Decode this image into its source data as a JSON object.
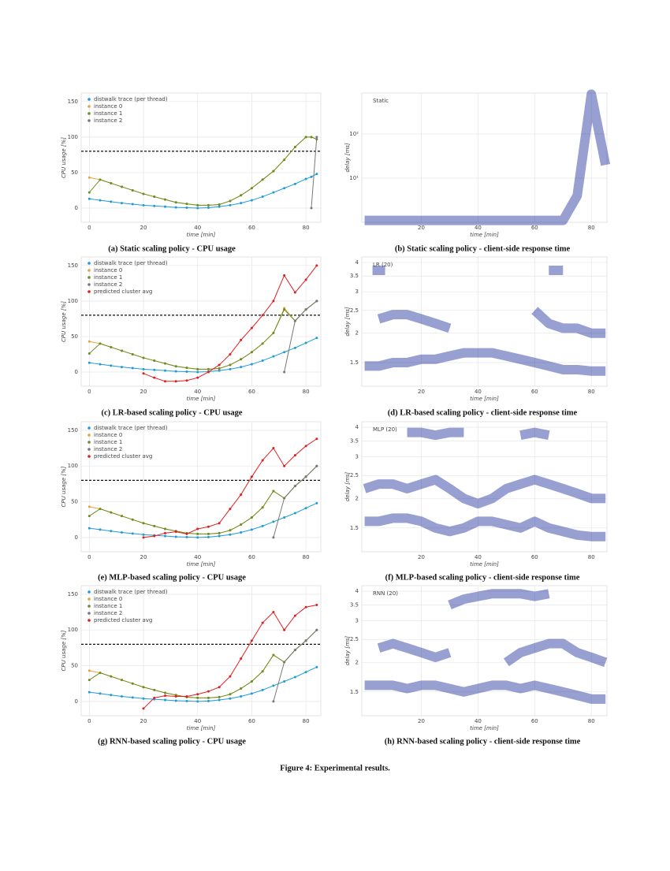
{
  "chart_data": [
    {
      "type": "line",
      "caption": "(a) Static scaling policy - CPU usage",
      "xlabel": "time [min]",
      "ylabel": "CPU usage [%]",
      "x": [
        0,
        4,
        8,
        12,
        16,
        20,
        24,
        28,
        32,
        36,
        40,
        44,
        48,
        52,
        56,
        60,
        64,
        68,
        72,
        76,
        80,
        82,
        84
      ],
      "series": [
        {
          "name": "distwalk trace (per thread)",
          "color": "#1f9bd9",
          "values": [
            13,
            11,
            9,
            7,
            5.5,
            4,
            3,
            2,
            1,
            0.5,
            0,
            0.5,
            2,
            4,
            7,
            11,
            16,
            22,
            28,
            34,
            41,
            44,
            48
          ]
        },
        {
          "name": "instance 0",
          "color": "#e6a23c",
          "values": [
            43,
            40,
            35,
            30,
            25,
            20,
            16,
            12,
            8,
            6,
            4,
            4,
            5,
            10,
            18,
            28,
            40,
            52,
            68,
            86,
            100,
            100,
            97
          ]
        },
        {
          "name": "instance 1",
          "color": "#6b8e23",
          "values": [
            22,
            40,
            35,
            30,
            25,
            20,
            16,
            12,
            8,
            6,
            4,
            4,
            5,
            10,
            18,
            28,
            40,
            52,
            68,
            86,
            100,
            100,
            97
          ]
        },
        {
          "name": "instance 2",
          "color": "#777777",
          "values": [
            null,
            null,
            null,
            null,
            null,
            null,
            null,
            null,
            null,
            null,
            null,
            null,
            null,
            null,
            null,
            null,
            null,
            null,
            null,
            null,
            null,
            0,
            100
          ]
        }
      ],
      "hline": 80,
      "xlim": [
        -3,
        85.5
      ],
      "ylim": [
        -20,
        162
      ],
      "xticks": [
        0,
        20,
        40,
        60,
        80
      ],
      "yticks": [
        0,
        50,
        100,
        150
      ],
      "grid": true
    },
    {
      "type": "density",
      "caption": "(b) Static scaling policy - client-side response time",
      "xlabel": "time [min]",
      "ylabel": "delay [ms]",
      "annotation": "Static",
      "x": [
        0,
        5,
        10,
        15,
        20,
        25,
        30,
        35,
        40,
        45,
        50,
        55,
        60,
        65,
        70,
        75,
        80,
        85
      ],
      "series": [
        {
          "color": "#1a2a9a",
          "values": [
            1.1,
            1.1,
            1.1,
            1.1,
            1.1,
            1.1,
            1.1,
            1.1,
            1.1,
            1.1,
            1.1,
            1.1,
            1.1,
            1.1,
            1.1,
            4,
            800,
            20
          ]
        }
      ],
      "log_y": true,
      "xlim": [
        -1,
        85.5
      ],
      "ylim": [
        1,
        850
      ],
      "xticks": [
        20,
        40,
        60,
        80
      ],
      "yticks": [
        {
          "value": 10,
          "label": "10¹"
        },
        {
          "value": 100,
          "label": "10²"
        }
      ],
      "grid": true
    },
    {
      "type": "line",
      "caption": "(c) LR-based scaling policy - CPU usage",
      "xlabel": "time [min]",
      "ylabel": "CPU usage [%]",
      "x": [
        0,
        4,
        8,
        12,
        16,
        20,
        24,
        28,
        32,
        36,
        40,
        44,
        48,
        52,
        56,
        60,
        64,
        68,
        72,
        76,
        80,
        84
      ],
      "series": [
        {
          "name": "distwalk trace (per thread)",
          "color": "#1f9bd9",
          "values": [
            13,
            11,
            9,
            7,
            5.5,
            4,
            3,
            2,
            1,
            0.5,
            0,
            0.5,
            2,
            4,
            7,
            11,
            16,
            22,
            28,
            34,
            41,
            48
          ]
        },
        {
          "name": "instance 0",
          "color": "#e6a23c",
          "values": [
            43,
            40,
            35,
            30,
            25,
            20,
            16,
            12,
            8,
            6,
            4,
            4,
            5,
            10,
            18,
            28,
            40,
            55,
            90,
            72,
            88,
            100
          ]
        },
        {
          "name": "instance 1",
          "color": "#6b8e23",
          "values": [
            26,
            40,
            35,
            30,
            25,
            20,
            16,
            12,
            8,
            6,
            4,
            4,
            5,
            10,
            18,
            28,
            40,
            55,
            88,
            72,
            88,
            100
          ]
        },
        {
          "name": "instance 2",
          "color": "#777777",
          "values": [
            null,
            null,
            null,
            null,
            null,
            null,
            null,
            null,
            null,
            null,
            null,
            null,
            null,
            null,
            null,
            null,
            null,
            null,
            0,
            72,
            88,
            100
          ]
        },
        {
          "name": "predicted cluster avg",
          "color": "#e02020",
          "values": [
            null,
            null,
            null,
            null,
            null,
            -2,
            -8,
            -13,
            -13,
            -12,
            -8,
            0,
            10,
            25,
            45,
            62,
            80,
            100,
            136,
            112,
            130,
            150
          ]
        }
      ],
      "hline": 80,
      "xlim": [
        -3,
        85.5
      ],
      "ylim": [
        -20,
        162
      ],
      "xticks": [
        0,
        20,
        40,
        60,
        80
      ],
      "yticks": [
        0,
        50,
        100,
        150
      ],
      "grid": true
    },
    {
      "type": "density",
      "caption": "(d) LR-based scaling policy - client-side response time",
      "xlabel": "time [min]",
      "ylabel": "delay [ms]",
      "annotation": "LR (20)",
      "x": [
        0,
        5,
        10,
        15,
        20,
        25,
        30,
        35,
        40,
        45,
        50,
        55,
        60,
        65,
        70,
        75,
        80,
        85
      ],
      "series": [
        {
          "color": "#1a2a9a",
          "values": [
            1.45,
            1.45,
            1.5,
            1.5,
            1.55,
            1.55,
            1.6,
            1.65,
            1.65,
            1.65,
            1.6,
            1.55,
            1.5,
            1.45,
            1.4,
            1.4,
            1.38,
            1.38
          ]
        },
        {
          "color": "#1a2a9a",
          "values": [
            null,
            2.3,
            2.4,
            2.4,
            2.3,
            2.2,
            2.1,
            null,
            null,
            null,
            null,
            null,
            2.5,
            2.2,
            2.1,
            2.1,
            2.0,
            2.0
          ]
        },
        {
          "color": "#1a2a9a",
          "values": [
            null,
            3.7,
            null,
            null,
            null,
            null,
            null,
            null,
            null,
            null,
            null,
            null,
            null,
            3.7,
            3.7,
            null,
            null,
            null
          ]
        }
      ],
      "log_y": true,
      "xlim": [
        -1,
        85.5
      ],
      "ylim": [
        1.19,
        4.22
      ],
      "xticks": [
        20,
        40,
        60,
        80
      ],
      "yticks": [
        1.5,
        2,
        2.5,
        3,
        3.5,
        4
      ],
      "grid": true
    },
    {
      "type": "line",
      "caption": "(e) MLP-based scaling policy - CPU usage",
      "xlabel": "time [min]",
      "ylabel": "CPU usage [%]",
      "x": [
        0,
        4,
        8,
        12,
        16,
        20,
        24,
        28,
        32,
        36,
        40,
        44,
        48,
        52,
        56,
        60,
        64,
        68,
        72,
        76,
        80,
        84
      ],
      "series": [
        {
          "name": "distwalk trace (per thread)",
          "color": "#1f9bd9",
          "values": [
            13,
            11,
            9,
            7,
            5.5,
            4,
            3,
            2,
            1,
            0.5,
            0,
            0.5,
            2,
            4,
            7,
            11,
            16,
            22,
            28,
            34,
            41,
            48
          ]
        },
        {
          "name": "instance 0",
          "color": "#e6a23c",
          "values": [
            43,
            40,
            35,
            30,
            25,
            20,
            16,
            12,
            9,
            6,
            5,
            5,
            6,
            10,
            18,
            28,
            42,
            65,
            55,
            72,
            85,
            100
          ]
        },
        {
          "name": "instance 1",
          "color": "#6b8e23",
          "values": [
            30,
            40,
            35,
            30,
            25,
            20,
            16,
            12,
            9,
            6,
            5,
            5,
            6,
            10,
            18,
            28,
            42,
            65,
            55,
            72,
            85,
            100
          ]
        },
        {
          "name": "instance 2",
          "color": "#777777",
          "values": [
            null,
            null,
            null,
            null,
            null,
            null,
            null,
            null,
            null,
            null,
            null,
            null,
            null,
            null,
            null,
            null,
            null,
            0,
            55,
            72,
            85,
            100
          ]
        },
        {
          "name": "predicted cluster avg",
          "color": "#e02020",
          "values": [
            null,
            null,
            null,
            null,
            null,
            0,
            2,
            6,
            8,
            5,
            12,
            15,
            20,
            40,
            60,
            85,
            108,
            125,
            100,
            115,
            128,
            138
          ]
        }
      ],
      "hline": 80,
      "xlim": [
        -3,
        85.5
      ],
      "ylim": [
        -20,
        162
      ],
      "xticks": [
        0,
        20,
        40,
        60,
        80
      ],
      "yticks": [
        0,
        50,
        100,
        150
      ],
      "grid": true
    },
    {
      "type": "density",
      "caption": "(f) MLP-based scaling policy - client-side response time",
      "xlabel": "time [min]",
      "ylabel": "delay [ms]",
      "annotation": "MLP (20)",
      "x": [
        0,
        5,
        10,
        15,
        20,
        25,
        30,
        35,
        40,
        45,
        50,
        55,
        60,
        65,
        70,
        75,
        80,
        85
      ],
      "series": [
        {
          "color": "#1a2a9a",
          "values": [
            1.6,
            1.6,
            1.65,
            1.65,
            1.6,
            1.5,
            1.45,
            1.5,
            1.6,
            1.6,
            1.55,
            1.5,
            1.6,
            1.5,
            1.45,
            1.4,
            1.38,
            1.38
          ]
        },
        {
          "color": "#1a2a9a",
          "values": [
            2.2,
            2.3,
            2.3,
            2.2,
            2.3,
            2.4,
            2.2,
            2.0,
            1.9,
            2.0,
            2.2,
            2.3,
            2.4,
            2.3,
            2.2,
            2.1,
            2.0,
            2.0
          ]
        },
        {
          "color": "#1a2a9a",
          "values": [
            null,
            null,
            null,
            3.8,
            3.8,
            3.7,
            3.8,
            3.8,
            null,
            null,
            null,
            3.7,
            3.8,
            3.7,
            null,
            null,
            null,
            null
          ]
        }
      ],
      "log_y": true,
      "xlim": [
        -1,
        85.5
      ],
      "ylim": [
        1.19,
        4.22
      ],
      "xticks": [
        20,
        40,
        60,
        80
      ],
      "yticks": [
        1.5,
        2,
        2.5,
        3,
        3.5,
        4
      ],
      "grid": true
    },
    {
      "type": "line",
      "caption": "(g) RNN-based scaling policy - CPU usage",
      "xlabel": "time [min]",
      "ylabel": "CPU usage [%]",
      "x": [
        0,
        4,
        8,
        12,
        16,
        20,
        24,
        28,
        32,
        36,
        40,
        44,
        48,
        52,
        56,
        60,
        64,
        68,
        72,
        76,
        80,
        84
      ],
      "series": [
        {
          "name": "distwalk trace (per thread)",
          "color": "#1f9bd9",
          "values": [
            13,
            11,
            9,
            7,
            5.5,
            4,
            3,
            2,
            1,
            0.5,
            0,
            0.5,
            2,
            4,
            7,
            11,
            16,
            22,
            28,
            34,
            41,
            48
          ]
        },
        {
          "name": "instance 0",
          "color": "#e6a23c",
          "values": [
            43,
            40,
            35,
            30,
            25,
            20,
            16,
            12,
            9,
            6,
            5,
            5,
            6,
            10,
            18,
            28,
            42,
            65,
            55,
            72,
            85,
            100
          ]
        },
        {
          "name": "instance 1",
          "color": "#6b8e23",
          "values": [
            30,
            40,
            35,
            30,
            25,
            20,
            16,
            12,
            9,
            6,
            5,
            5,
            6,
            10,
            18,
            28,
            42,
            65,
            55,
            72,
            85,
            100
          ]
        },
        {
          "name": "instance 2",
          "color": "#777777",
          "values": [
            null,
            null,
            null,
            null,
            null,
            null,
            null,
            null,
            null,
            null,
            null,
            null,
            null,
            null,
            null,
            null,
            null,
            0,
            55,
            72,
            85,
            100
          ]
        },
        {
          "name": "predicted cluster avg",
          "color": "#e02020",
          "values": [
            null,
            null,
            null,
            null,
            null,
            -10,
            5,
            8,
            7,
            7,
            10,
            14,
            20,
            35,
            60,
            85,
            110,
            125,
            100,
            120,
            132,
            135
          ]
        }
      ],
      "hline": 80,
      "xlim": [
        -3,
        85.5
      ],
      "ylim": [
        -20,
        162
      ],
      "xticks": [
        0,
        20,
        40,
        60,
        80
      ],
      "yticks": [
        0,
        50,
        100,
        150
      ],
      "grid": true
    },
    {
      "type": "density",
      "caption": "(h) RNN-based scaling policy - client-side response time",
      "xlabel": "time [min]",
      "ylabel": "delay [ms]",
      "annotation": "RNN (20)",
      "x": [
        0,
        5,
        10,
        15,
        20,
        25,
        30,
        35,
        40,
        45,
        50,
        55,
        60,
        65,
        70,
        75,
        80,
        85
      ],
      "series": [
        {
          "color": "#1a2a9a",
          "values": [
            1.6,
            1.6,
            1.6,
            1.55,
            1.6,
            1.6,
            1.55,
            1.5,
            1.55,
            1.6,
            1.6,
            1.55,
            1.6,
            1.55,
            1.5,
            1.45,
            1.4,
            1.4
          ]
        },
        {
          "color": "#1a2a9a",
          "values": [
            null,
            2.3,
            2.4,
            2.3,
            2.2,
            2.1,
            2.2,
            null,
            null,
            null,
            2.0,
            2.2,
            2.3,
            2.4,
            2.4,
            2.2,
            2.1,
            2.0
          ]
        },
        {
          "color": "#1a2a9a",
          "values": [
            null,
            null,
            null,
            null,
            null,
            null,
            3.5,
            3.7,
            3.8,
            3.9,
            3.9,
            3.9,
            3.8,
            3.9,
            null,
            null,
            null,
            null
          ]
        }
      ],
      "log_y": true,
      "xlim": [
        -1,
        85.5
      ],
      "ylim": [
        1.19,
        4.22
      ],
      "xticks": [
        20,
        40,
        60,
        80
      ],
      "yticks": [
        1.5,
        2,
        2.5,
        3,
        3.5,
        4
      ],
      "grid": true
    }
  ],
  "figure_caption": "Figure 4: Experimental results."
}
